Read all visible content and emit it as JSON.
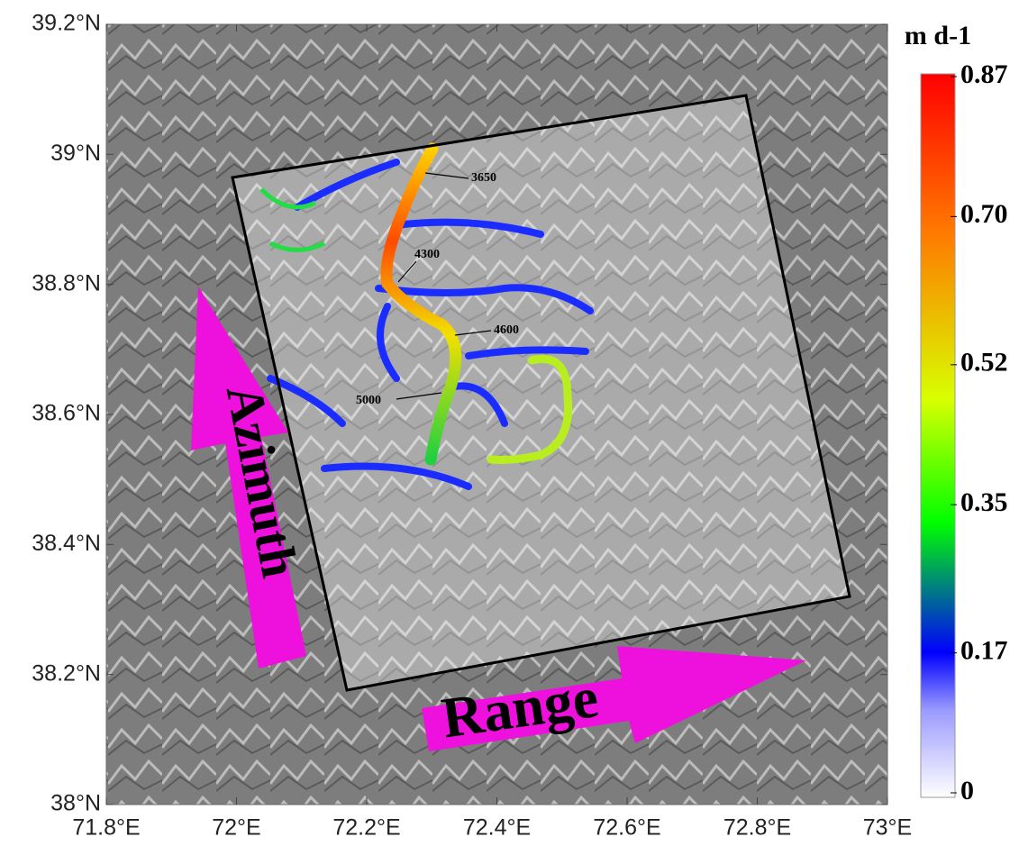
{
  "map": {
    "xlim": [
      71.8,
      73.0
    ],
    "ylim": [
      38.0,
      39.2
    ],
    "xticks": [
      {
        "value": 71.8,
        "label": "71.8°E"
      },
      {
        "value": 72.0,
        "label": "72°E"
      },
      {
        "value": 72.2,
        "label": "72.2°E"
      },
      {
        "value": 72.4,
        "label": "72.4°E"
      },
      {
        "value": 72.6,
        "label": "72.6°E"
      },
      {
        "value": 72.8,
        "label": "72.8°E"
      },
      {
        "value": 73.0,
        "label": "73°E"
      }
    ],
    "yticks": [
      {
        "value": 38.0,
        "label": "38°N"
      },
      {
        "value": 38.2,
        "label": "38.2°N"
      },
      {
        "value": 38.4,
        "label": "38.4°N"
      },
      {
        "value": 38.6,
        "label": "38.6°N"
      },
      {
        "value": 38.8,
        "label": "38.8°N"
      },
      {
        "value": 39.0,
        "label": "39°N"
      },
      {
        "value": 39.2,
        "label": "39.2°N"
      }
    ],
    "colorbar": {
      "title": "m d-1",
      "lim": [
        0,
        0.87
      ],
      "ticks": [
        0,
        0.17,
        0.35,
        0.52,
        {
          "value": 0.7,
          "label": "0.70"
        },
        0.87
      ]
    },
    "annotations": [
      "3650",
      "4300",
      "4600",
      "5000"
    ],
    "arrows": [
      "Azimuth",
      "Range"
    ]
  }
}
